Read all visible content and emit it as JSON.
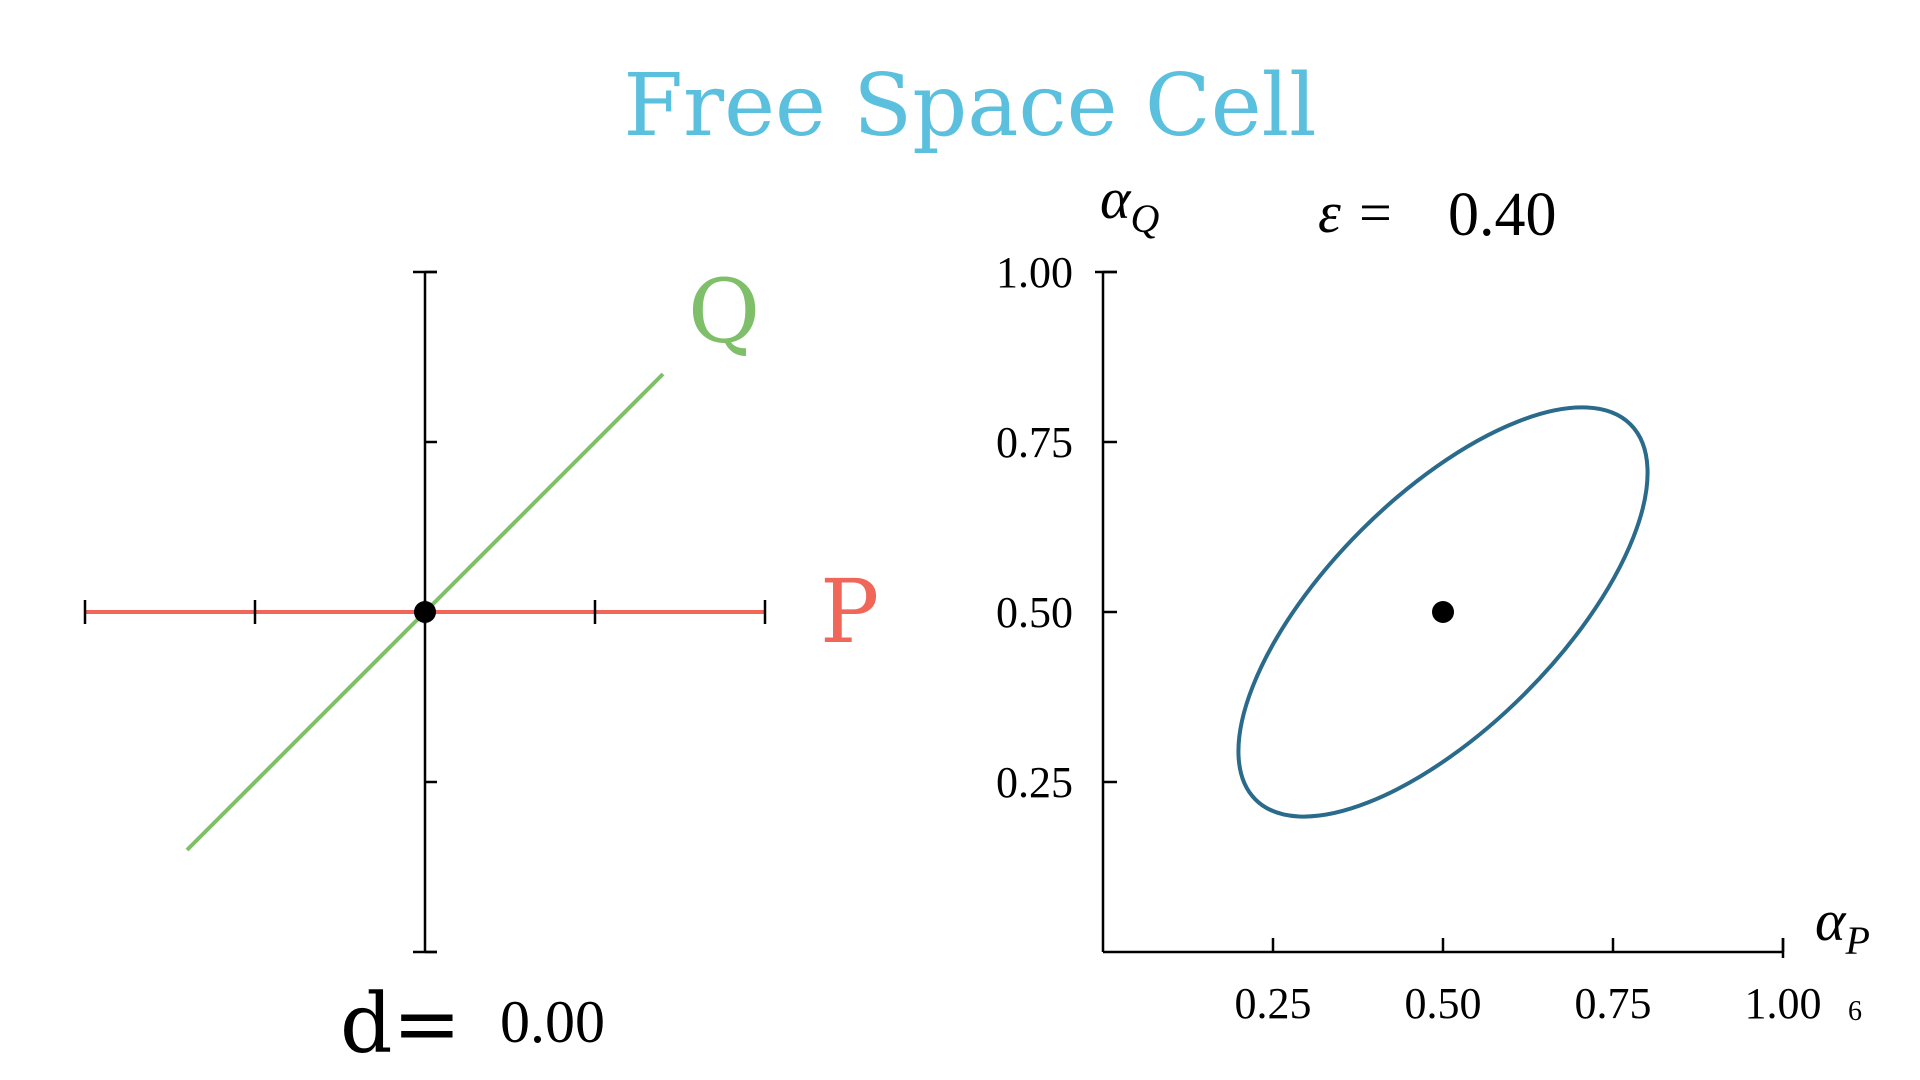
{
  "title": "Free Space Cell",
  "colors": {
    "title": "#5BC0DE",
    "p_line": "#F0675A",
    "q_line": "#80BF69",
    "ellipse": "#2A6A8A",
    "axis": "#000000",
    "point": "#000000"
  },
  "left_panel": {
    "p_label": "P",
    "q_label": "Q",
    "distance_label": "d=",
    "distance_value": "0.00",
    "h_ticks": [
      -1,
      -0.5,
      0,
      0.5,
      1
    ],
    "v_ticks": [
      -1,
      -0.5,
      0,
      0.5,
      1
    ],
    "p_segment": {
      "x": [
        -1,
        1
      ],
      "y": [
        0,
        0
      ]
    },
    "q_segment": {
      "x": [
        -0.7,
        0.7
      ],
      "y": [
        -0.7,
        0.7
      ]
    },
    "intersection": {
      "x": 0,
      "y": 0
    }
  },
  "right_panel": {
    "y_axis_symbol": "α",
    "y_axis_subscript": "Q",
    "x_axis_symbol": "α",
    "x_axis_subscript": "P",
    "epsilon_label": "ε =",
    "epsilon_value": "0.40",
    "corner_note": "6",
    "x_ticks": [
      "0.25",
      "0.50",
      "0.75",
      "1.00"
    ],
    "y_ticks": [
      "1.00",
      "0.75",
      "0.50",
      "0.25"
    ]
  },
  "chart_data": {
    "type": "scatter",
    "xlim": [
      0,
      1
    ],
    "ylim": [
      0,
      1
    ],
    "x_tick_values": [
      0.25,
      0.5,
      0.75,
      1.0
    ],
    "y_tick_values": [
      0.25,
      0.5,
      0.75,
      1.0
    ],
    "points": [
      {
        "x": 0.5,
        "y": 0.5
      }
    ],
    "free_space_ellipse": {
      "center": [
        0.5,
        0.5
      ],
      "semi_major": 0.39,
      "semi_minor": 0.17,
      "angle_deg": 45
    }
  }
}
